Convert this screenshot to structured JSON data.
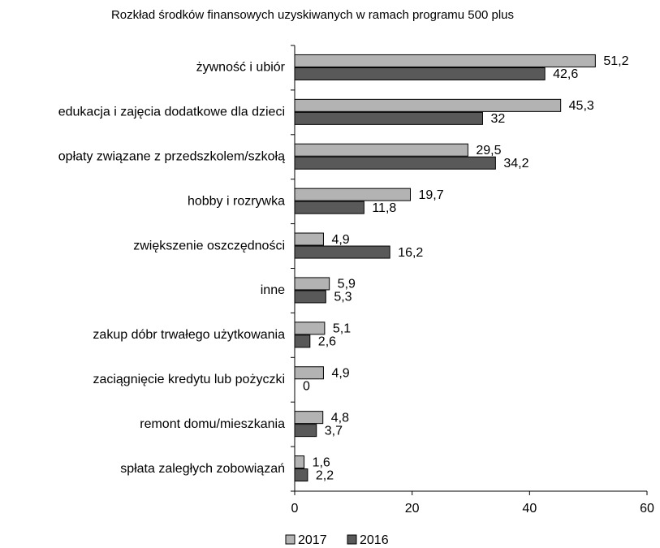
{
  "chart_data": {
    "type": "bar",
    "orientation": "horizontal",
    "title": "Rozkład środków finansowych uzyskiwanych w ramach programu 500 plus",
    "categories": [
      "żywność i ubiór",
      "edukacja i zajęcia dodatkowe dla dzieci",
      "opłaty związane z przedszkolem/szkołą",
      "hobby i rozrywka",
      "zwiększenie oszczędności",
      "inne",
      "zakup dóbr trwałego użytkowania",
      "zaciągnięcie kredytu lub pożyczki",
      "remont domu/mieszkania",
      "spłata zaległych zobowiązań"
    ],
    "series": [
      {
        "name": "2017",
        "color": "#b3b3b3",
        "values": [
          51.2,
          45.3,
          29.5,
          19.7,
          4.9,
          5.9,
          5.1,
          4.9,
          4.8,
          1.6
        ],
        "value_labels": [
          "51,2",
          "45,3",
          "29,5",
          "19,7",
          "4,9",
          "5,9",
          "5,1",
          "4,9",
          "4,8",
          "1,6"
        ]
      },
      {
        "name": "2016",
        "color": "#595959",
        "values": [
          42.6,
          32,
          34.2,
          11.8,
          16.2,
          5.3,
          2.6,
          0,
          3.7,
          2.2
        ],
        "value_labels": [
          "42,6",
          "32",
          "34,2",
          "11,8",
          "16,2",
          "5,3",
          "2,6",
          "0",
          "3,7",
          "2,2"
        ]
      }
    ],
    "xlim": [
      0,
      60
    ],
    "xticks": [
      0,
      20,
      40,
      60
    ],
    "grid": false,
    "legend": "bottom"
  }
}
